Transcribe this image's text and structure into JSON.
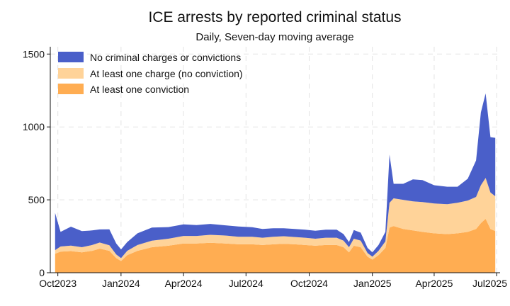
{
  "chart_data": {
    "type": "area",
    "title": "ICE arrests by reported criminal status",
    "subtitle": "Daily, Seven-day moving average",
    "xlabel": "",
    "ylabel": "",
    "stacked": true,
    "grid": true,
    "legend_position": "top-left",
    "x_ticks": [
      "Oct2023",
      "Jan2024",
      "Apr2024",
      "Jul2024",
      "Oct2024",
      "Jan2025",
      "Apr2025",
      "Jul2025"
    ],
    "x_tick_dates": [
      "2023-10-01",
      "2024-01-01",
      "2024-04-01",
      "2024-07-01",
      "2024-10-01",
      "2025-01-01",
      "2025-04-01",
      "2025-07-01"
    ],
    "y_ticks": [
      0,
      500,
      1000,
      1500
    ],
    "ylim": [
      0,
      1550
    ],
    "x_range": [
      "2023-09-20",
      "2025-07-06"
    ],
    "series": [
      {
        "name": "At least one conviction",
        "color": "#ffad52",
        "points": [
          [
            "2023-09-27",
            130
          ],
          [
            "2023-10-05",
            145
          ],
          [
            "2023-10-20",
            148
          ],
          [
            "2023-11-05",
            140
          ],
          [
            "2023-11-20",
            150
          ],
          [
            "2023-12-01",
            165
          ],
          [
            "2023-12-15",
            150
          ],
          [
            "2023-12-25",
            100
          ],
          [
            "2024-01-01",
            80
          ],
          [
            "2024-01-10",
            120
          ],
          [
            "2024-01-25",
            150
          ],
          [
            "2024-02-15",
            175
          ],
          [
            "2024-03-10",
            185
          ],
          [
            "2024-04-01",
            200
          ],
          [
            "2024-04-20",
            200
          ],
          [
            "2024-05-10",
            205
          ],
          [
            "2024-06-01",
            200
          ],
          [
            "2024-06-20",
            195
          ],
          [
            "2024-07-10",
            195
          ],
          [
            "2024-07-25",
            190
          ],
          [
            "2024-08-10",
            195
          ],
          [
            "2024-08-25",
            198
          ],
          [
            "2024-09-10",
            195
          ],
          [
            "2024-09-25",
            190
          ],
          [
            "2024-10-10",
            185
          ],
          [
            "2024-10-25",
            190
          ],
          [
            "2024-11-10",
            190
          ],
          [
            "2024-11-20",
            175
          ],
          [
            "2024-11-28",
            140
          ],
          [
            "2024-12-05",
            185
          ],
          [
            "2024-12-15",
            175
          ],
          [
            "2024-12-25",
            110
          ],
          [
            "2025-01-01",
            90
          ],
          [
            "2025-01-10",
            120
          ],
          [
            "2025-01-20",
            170
          ],
          [
            "2025-01-26",
            310
          ],
          [
            "2025-02-01",
            320
          ],
          [
            "2025-02-15",
            300
          ],
          [
            "2025-03-01",
            290
          ],
          [
            "2025-03-15",
            280
          ],
          [
            "2025-04-01",
            270
          ],
          [
            "2025-04-20",
            265
          ],
          [
            "2025-05-05",
            270
          ],
          [
            "2025-05-20",
            280
          ],
          [
            "2025-06-01",
            300
          ],
          [
            "2025-06-08",
            340
          ],
          [
            "2025-06-15",
            370
          ],
          [
            "2025-06-22",
            300
          ],
          [
            "2025-06-29",
            285
          ]
        ]
      },
      {
        "name": "At least one charge (no conviction)",
        "color": "#ffd399",
        "points": [
          [
            "2023-09-27",
            25
          ],
          [
            "2023-10-05",
            35
          ],
          [
            "2023-10-20",
            38
          ],
          [
            "2023-11-05",
            35
          ],
          [
            "2023-11-20",
            40
          ],
          [
            "2023-12-01",
            42
          ],
          [
            "2023-12-15",
            38
          ],
          [
            "2023-12-25",
            25
          ],
          [
            "2024-01-01",
            20
          ],
          [
            "2024-01-10",
            30
          ],
          [
            "2024-01-25",
            40
          ],
          [
            "2024-02-15",
            45
          ],
          [
            "2024-03-10",
            48
          ],
          [
            "2024-04-01",
            52
          ],
          [
            "2024-04-20",
            52
          ],
          [
            "2024-05-10",
            55
          ],
          [
            "2024-06-01",
            55
          ],
          [
            "2024-06-20",
            52
          ],
          [
            "2024-07-10",
            52
          ],
          [
            "2024-07-25",
            50
          ],
          [
            "2024-08-10",
            52
          ],
          [
            "2024-08-25",
            52
          ],
          [
            "2024-09-10",
            50
          ],
          [
            "2024-09-25",
            50
          ],
          [
            "2024-10-10",
            48
          ],
          [
            "2024-10-25",
            50
          ],
          [
            "2024-11-10",
            50
          ],
          [
            "2024-11-20",
            45
          ],
          [
            "2024-11-28",
            35
          ],
          [
            "2024-12-05",
            48
          ],
          [
            "2024-12-15",
            45
          ],
          [
            "2024-12-25",
            25
          ],
          [
            "2025-01-01",
            20
          ],
          [
            "2025-01-10",
            30
          ],
          [
            "2025-01-20",
            45
          ],
          [
            "2025-01-26",
            170
          ],
          [
            "2025-02-01",
            190
          ],
          [
            "2025-02-15",
            200
          ],
          [
            "2025-03-01",
            200
          ],
          [
            "2025-03-15",
            205
          ],
          [
            "2025-04-01",
            205
          ],
          [
            "2025-04-20",
            205
          ],
          [
            "2025-05-05",
            210
          ],
          [
            "2025-05-20",
            215
          ],
          [
            "2025-06-01",
            220
          ],
          [
            "2025-06-08",
            260
          ],
          [
            "2025-06-15",
            280
          ],
          [
            "2025-06-22",
            250
          ],
          [
            "2025-06-29",
            240
          ]
        ]
      },
      {
        "name": "No criminal charges or convictions",
        "color": "#4a5fc9",
        "points": [
          [
            "2023-09-27",
            255
          ],
          [
            "2023-10-05",
            100
          ],
          [
            "2023-10-20",
            130
          ],
          [
            "2023-11-05",
            110
          ],
          [
            "2023-11-20",
            100
          ],
          [
            "2023-12-01",
            90
          ],
          [
            "2023-12-15",
            110
          ],
          [
            "2023-12-25",
            75
          ],
          [
            "2024-01-01",
            60
          ],
          [
            "2024-01-10",
            60
          ],
          [
            "2024-01-25",
            80
          ],
          [
            "2024-02-15",
            90
          ],
          [
            "2024-03-10",
            80
          ],
          [
            "2024-04-01",
            80
          ],
          [
            "2024-04-20",
            75
          ],
          [
            "2024-05-10",
            75
          ],
          [
            "2024-06-01",
            70
          ],
          [
            "2024-06-20",
            70
          ],
          [
            "2024-07-10",
            65
          ],
          [
            "2024-07-25",
            60
          ],
          [
            "2024-08-10",
            58
          ],
          [
            "2024-08-25",
            55
          ],
          [
            "2024-09-10",
            55
          ],
          [
            "2024-09-25",
            55
          ],
          [
            "2024-10-10",
            55
          ],
          [
            "2024-10-25",
            55
          ],
          [
            "2024-11-10",
            55
          ],
          [
            "2024-11-20",
            45
          ],
          [
            "2024-11-28",
            35
          ],
          [
            "2024-12-05",
            60
          ],
          [
            "2024-12-15",
            55
          ],
          [
            "2024-12-25",
            35
          ],
          [
            "2025-01-01",
            30
          ],
          [
            "2025-01-10",
            40
          ],
          [
            "2025-01-20",
            65
          ],
          [
            "2025-01-26",
            330
          ],
          [
            "2025-02-01",
            100
          ],
          [
            "2025-02-15",
            110
          ],
          [
            "2025-03-01",
            150
          ],
          [
            "2025-03-15",
            150
          ],
          [
            "2025-04-01",
            125
          ],
          [
            "2025-04-20",
            120
          ],
          [
            "2025-05-05",
            110
          ],
          [
            "2025-05-20",
            150
          ],
          [
            "2025-06-01",
            250
          ],
          [
            "2025-06-08",
            500
          ],
          [
            "2025-06-15",
            580
          ],
          [
            "2025-06-22",
            380
          ],
          [
            "2025-06-29",
            400
          ]
        ]
      }
    ],
    "legend": [
      {
        "label": "No criminal charges or convictions",
        "color": "#4a5fc9"
      },
      {
        "label": "At least one charge (no conviction)",
        "color": "#ffd399"
      },
      {
        "label": "At least one conviction",
        "color": "#ffad52"
      }
    ]
  }
}
